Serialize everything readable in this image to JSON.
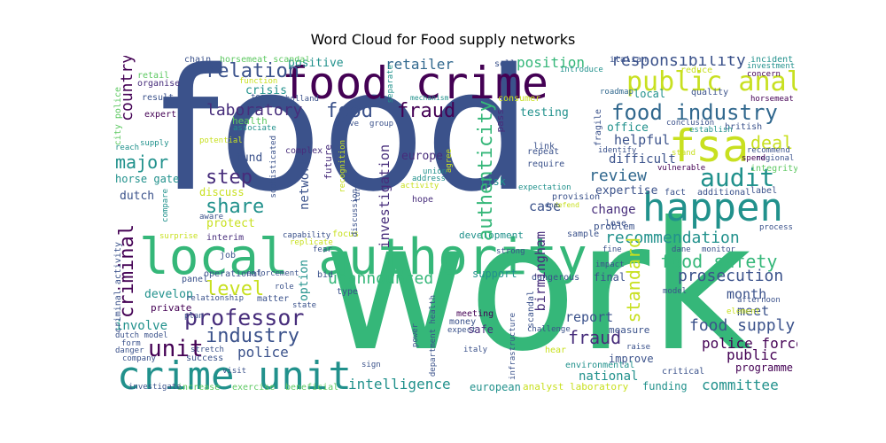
{
  "title": "Word Cloud for Food supply networks",
  "palette": {
    "navy": "#3b528b",
    "purple": "#440154",
    "indigo": "#472d7b",
    "blue": "#31688e",
    "teal": "#21918c",
    "green": "#35b779",
    "lime": "#5ec962",
    "yellow": "#c8e020",
    "bright": "#fde725"
  },
  "words": {
    "food": "food",
    "work": "work",
    "local_authority": "local authority",
    "food_crime": "food crime",
    "crime_unit": "crime unit",
    "happen": "happen",
    "fsa": "fsa",
    "public_analyst": "public analyst",
    "food_industry": "food industry",
    "professor": "professor",
    "industry": "industry",
    "unit": "unit",
    "audit": "audit",
    "laboratory": "laboratory",
    "fraud": "fraud",
    "fraud2": "fraud",
    "food2": "food",
    "relation": "relation",
    "responsibility": "responsibility",
    "recommendation": "recommendation",
    "food_safety": "food safety",
    "prosecution": "prosecution",
    "level": "level",
    "criminal": "criminal",
    "share": "share",
    "step": "step",
    "major": "major",
    "country": "country",
    "authenticity": "authenticity",
    "review": "review",
    "standard": "standard",
    "deal": "deal",
    "food_supply": "food supply",
    "police_force": "police force",
    "intelligence": "intelligence",
    "committee": "committee",
    "unannounced": "unannounced",
    "police": "police",
    "public": "public",
    "retailer": "retailer",
    "position": "position",
    "positive": "positive",
    "crisis": "crisis",
    "testing": "testing",
    "office": "office",
    "helpful": "helpful",
    "difficult": "difficult",
    "expertise": "expertise",
    "change": "change",
    "case": "case",
    "investigation": "investigation",
    "network": "network",
    "europe": "europe",
    "birmingham": "birmingham",
    "month": "month",
    "meet": "meet",
    "report": "report",
    "involve": "involve",
    "develop": "develop",
    "protect": "protect",
    "discuss": "discuss",
    "fund": "fund",
    "dutch": "dutch",
    "horse_gate": "horse gate",
    "national": "national",
    "funding": "funding",
    "improve": "improve",
    "programme": "programme",
    "european": "european",
    "analyst_laboratory": "analyst laboratory",
    "support": "support",
    "safe": "safe",
    "option": "option",
    "development": "development",
    "private": "private",
    "success": "success",
    "increase": "increase",
    "exercise": "exercise",
    "beneficial": "beneficial",
    "investigate": "investigate",
    "city_police": "city police",
    "criminal_activity": "criminal activity",
    "chain": "chain",
    "horsemeat_scandal": "horsemeat scandal",
    "sell": "sell",
    "italian": "italian",
    "incident": "incident",
    "investment": "investment",
    "concern": "concern",
    "horsemeat": "horsemeat",
    "retail": "retail",
    "organise": "organise",
    "result": "result",
    "expert": "expert",
    "function": "function",
    "team": "team",
    "holland": "holland",
    "introduce": "introduce",
    "roadmap": "roadmap",
    "reduce": "reduce",
    "quality": "quality",
    "local": "local",
    "british": "british",
    "establish": "establish",
    "conclusion": "conclusion",
    "health": "health",
    "associate": "associate",
    "drive": "drive",
    "group": "group",
    "mechanism": "mechanism",
    "separate": "separate",
    "consumer": "consumer",
    "link": "link",
    "pass": "pass",
    "fragile": "fragile",
    "potential": "potential",
    "supply": "supply",
    "reach": "reach",
    "complex": "complex",
    "sophisticated": "sophisticated",
    "future": "future",
    "recognition": "recognition",
    "union": "union",
    "address": "address",
    "activity": "activity",
    "agree": "agree",
    "risk": "risk",
    "repeat": "repeat",
    "require": "require",
    "expectation": "expectation",
    "identify": "identify",
    "stand": "stand",
    "recommend": "recommend",
    "regional": "regional",
    "integrity": "integrity",
    "spend": "spend",
    "vulnerable": "vulnerable",
    "fact": "fact",
    "additional": "additional",
    "label": "label",
    "provision": "provision",
    "defend": "defend",
    "dna": "dna",
    "dane": "dane",
    "monitor": "monitor",
    "problem": "problem",
    "lose": "lose",
    "sample": "sample",
    "process": "process",
    "compare": "compare",
    "aware": "aware",
    "interim": "interim",
    "surprise": "surprise",
    "capability": "capability",
    "replicate": "replicate",
    "fear": "fear",
    "focus": "focus",
    "hope": "hope",
    "discussion": "discussion",
    "turn": "turn",
    "strong": "strong",
    "job": "job",
    "operational": "operational",
    "enforcement": "enforcement",
    "panel": "panel",
    "role": "role",
    "bid": "bid",
    "relationship": "relationship",
    "matter": "matter",
    "state": "state",
    "type": "type",
    "plan": "plan",
    "dutch_model": "dutch model",
    "form": "form",
    "danger": "danger",
    "stretch": "stretch",
    "company": "company",
    "visit": "visit",
    "meeting": "meeting",
    "money": "money",
    "expect": "expect",
    "department_health": "department health",
    "power": "power",
    "italy": "italy",
    "sign": "sign",
    "scandal": "scandal",
    "infrastructure": "infrastructure",
    "challenge": "challenge",
    "measure": "measure",
    "hear": "hear",
    "dangerous": "dangerous",
    "impact": "impact",
    "fine": "fine",
    "final": "final",
    "raise": "raise",
    "environmental": "environmental",
    "critical": "critical",
    "model": "model",
    "element": "element",
    "afternoon": "afternoon"
  }
}
